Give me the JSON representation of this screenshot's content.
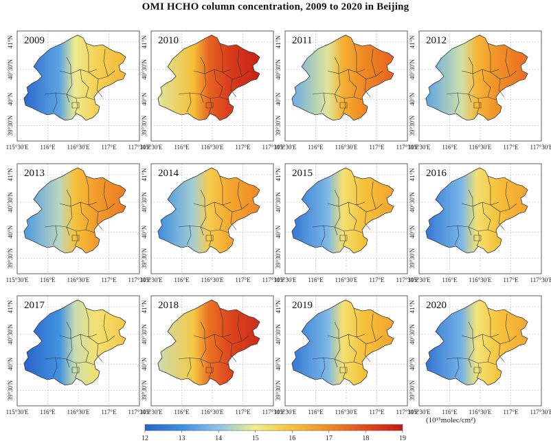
{
  "title": "OMI HCHO column concentration, 2009 to 2020 in Beijing",
  "x_ticks": [
    "115°30'E",
    "116°E",
    "116°30'E",
    "117°E",
    "117°30'E"
  ],
  "y_ticks": [
    "41°N",
    "40°30'N",
    "40°N",
    "39°30'N"
  ],
  "panels": [
    {
      "year": "2009",
      "mean_level": 0.4
    },
    {
      "year": "2010",
      "mean_level": 0.78
    },
    {
      "year": "2011",
      "mean_level": 0.6
    },
    {
      "year": "2012",
      "mean_level": 0.58
    },
    {
      "year": "2013",
      "mean_level": 0.55
    },
    {
      "year": "2014",
      "mean_level": 0.52
    },
    {
      "year": "2015",
      "mean_level": 0.45
    },
    {
      "year": "2016",
      "mean_level": 0.45
    },
    {
      "year": "2017",
      "mean_level": 0.35
    },
    {
      "year": "2018",
      "mean_level": 0.75
    },
    {
      "year": "2019",
      "mean_level": 0.45
    },
    {
      "year": "2020",
      "mean_level": 0.44
    }
  ],
  "colorbar": {
    "ticks": [
      "12",
      "13",
      "14",
      "15",
      "16",
      "17",
      "18",
      "19"
    ],
    "unit": "(10¹⁵molec/cm²)",
    "colors": [
      "#2a63c8",
      "#3d8fe0",
      "#8ec4ea",
      "#f2ee8a",
      "#f7c23a",
      "#f08c24",
      "#e04a1e",
      "#c41a16"
    ]
  }
}
